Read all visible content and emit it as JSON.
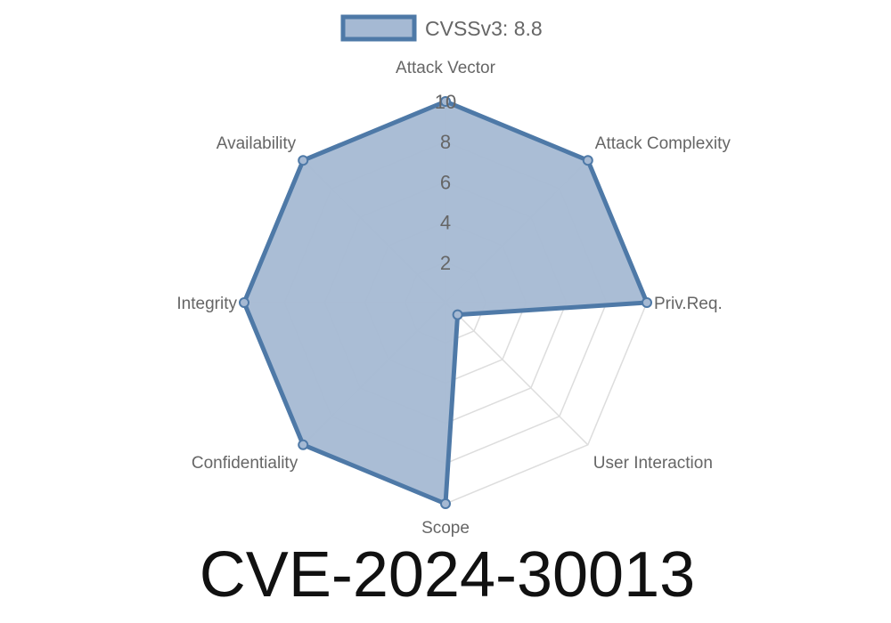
{
  "chart_data": {
    "type": "radar",
    "title": "CVE-2024-30013",
    "legend": {
      "label": "CVSSv3: 8.8",
      "placement": "top"
    },
    "axes": [
      "Attack Vector",
      "Attack Complexity",
      "Priv.Req.",
      "User Interaction",
      "Scope",
      "Confidentiality",
      "Integrity",
      "Availability"
    ],
    "series": [
      {
        "name": "CVSSv3: 8.8",
        "values": [
          10,
          10,
          10,
          0.85,
          10,
          10,
          10,
          10
        ]
      }
    ],
    "rlim": [
      0,
      10
    ],
    "ticks": [
      "2",
      "4",
      "6",
      "8",
      "10"
    ],
    "grid": true,
    "colors": {
      "line": "#4e79a7",
      "fill": "#a5b9d3",
      "grid": "#dddddd",
      "text": "#666666"
    }
  }
}
